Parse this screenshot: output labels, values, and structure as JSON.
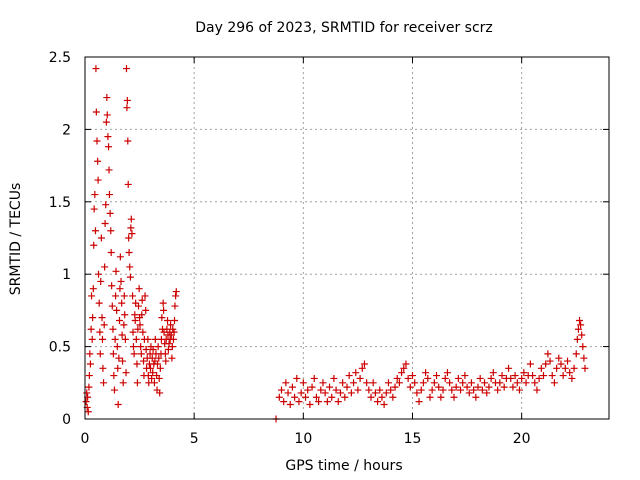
{
  "chart_data": {
    "type": "scatter",
    "title": "Day 296 of 2023, SRMTID for receiver scrz",
    "xlabel": "GPS time / hours",
    "ylabel": "SRMTID / TECUs",
    "xlim": [
      0,
      24
    ],
    "ylim": [
      0,
      2.5
    ],
    "xticks": [
      0,
      5,
      10,
      15,
      20
    ],
    "xtick_labels": [
      "0",
      "5",
      "10",
      "15",
      "20"
    ],
    "yticks": [
      0,
      0.5,
      1,
      1.5,
      2,
      2.5
    ],
    "ytick_labels": [
      "0",
      "0.5",
      "1",
      "1.5",
      "2",
      "2.5"
    ],
    "grid": true,
    "marker": "plus",
    "color": "#cc0000",
    "series": [
      {
        "name": "SRMTID",
        "points": [
          [
            0.05,
            0.12
          ],
          [
            0.08,
            0.18
          ],
          [
            0.1,
            0.08
          ],
          [
            0.12,
            0.15
          ],
          [
            0.15,
            0.05
          ],
          [
            0.18,
            0.22
          ],
          [
            0.2,
            0.3
          ],
          [
            0.22,
            0.45
          ],
          [
            0.25,
            0.38
          ],
          [
            0.28,
            0.62
          ],
          [
            0.3,
            0.85
          ],
          [
            0.33,
            0.55
          ],
          [
            0.35,
            0.7
          ],
          [
            0.38,
            0.9
          ],
          [
            0.4,
            1.2
          ],
          [
            0.42,
            1.45
          ],
          [
            0.45,
            1.55
          ],
          [
            0.48,
            1.3
          ],
          [
            0.5,
            2.42
          ],
          [
            0.52,
            2.12
          ],
          [
            0.55,
            1.92
          ],
          [
            0.58,
            1.78
          ],
          [
            0.6,
            1.65
          ],
          [
            0.62,
            1.0
          ],
          [
            0.65,
            0.8
          ],
          [
            0.68,
            0.6
          ],
          [
            0.7,
            0.45
          ],
          [
            0.72,
            0.95
          ],
          [
            0.75,
            1.25
          ],
          [
            0.78,
            0.7
          ],
          [
            0.8,
            0.55
          ],
          [
            0.82,
            0.35
          ],
          [
            0.85,
            0.25
          ],
          [
            0.88,
            0.65
          ],
          [
            0.9,
            1.05
          ],
          [
            0.92,
            1.35
          ],
          [
            0.95,
            1.48
          ],
          [
            0.98,
            2.05
          ],
          [
            1.0,
            2.22
          ],
          [
            1.02,
            2.1
          ],
          [
            1.05,
            1.95
          ],
          [
            1.08,
            1.88
          ],
          [
            1.1,
            1.72
          ],
          [
            1.12,
            1.55
          ],
          [
            1.15,
            1.42
          ],
          [
            1.18,
            1.3
          ],
          [
            1.2,
            1.15
          ],
          [
            1.22,
            0.92
          ],
          [
            1.25,
            0.78
          ],
          [
            1.28,
            0.62
          ],
          [
            1.3,
            0.45
          ],
          [
            1.32,
            0.3
          ],
          [
            1.35,
            0.2
          ],
          [
            1.38,
            0.55
          ],
          [
            1.4,
            0.85
          ],
          [
            1.42,
            1.02
          ],
          [
            1.45,
            0.75
          ],
          [
            1.48,
            0.5
          ],
          [
            1.5,
            0.35
          ],
          [
            1.52,
            0.1
          ],
          [
            1.55,
            0.42
          ],
          [
            1.58,
            0.68
          ],
          [
            1.6,
            0.9
          ],
          [
            1.62,
            1.12
          ],
          [
            1.65,
            0.95
          ],
          [
            1.68,
            0.8
          ],
          [
            1.7,
            0.58
          ],
          [
            1.72,
            0.4
          ],
          [
            1.75,
            0.25
          ],
          [
            1.78,
            0.65
          ],
          [
            1.8,
            0.85
          ],
          [
            1.82,
            0.72
          ],
          [
            1.85,
            0.55
          ],
          [
            1.88,
            0.32
          ],
          [
            1.9,
            2.42
          ],
          [
            1.92,
            2.15
          ],
          [
            1.94,
            2.2
          ],
          [
            1.96,
            1.92
          ],
          [
            1.98,
            1.62
          ],
          [
            2.0,
            1.25
          ],
          [
            2.02,
            1.15
          ],
          [
            2.05,
            1.05
          ],
          [
            2.08,
            0.98
          ],
          [
            2.1,
            1.32
          ],
          [
            2.12,
            1.38
          ],
          [
            2.15,
            1.28
          ],
          [
            2.18,
            0.85
          ],
          [
            2.2,
            0.6
          ],
          [
            2.22,
            0.5
          ],
          [
            2.25,
            0.45
          ],
          [
            2.28,
            0.72
          ],
          [
            2.3,
            0.68
          ],
          [
            2.32,
            0.8
          ],
          [
            2.35,
            0.55
          ],
          [
            2.38,
            0.38
          ],
          [
            2.4,
            0.25
          ],
          [
            2.42,
            0.62
          ],
          [
            2.45,
            0.78
          ],
          [
            2.48,
            0.9
          ],
          [
            2.5,
            0.7
          ],
          [
            2.52,
            0.65
          ],
          [
            2.55,
            0.5
          ],
          [
            2.58,
            0.45
          ],
          [
            2.6,
            0.72
          ],
          [
            2.62,
            0.82
          ],
          [
            2.65,
            0.6
          ],
          [
            2.68,
            0.4
          ],
          [
            2.7,
            0.3
          ],
          [
            2.72,
            0.55
          ],
          [
            2.75,
            0.85
          ],
          [
            2.78,
            0.75
          ],
          [
            2.8,
            0.48
          ],
          [
            2.82,
            0.35
          ],
          [
            2.85,
            0.42
          ],
          [
            2.88,
            0.55
          ],
          [
            2.9,
            0.3
          ],
          [
            2.92,
            0.25
          ],
          [
            2.95,
            0.38
          ],
          [
            2.98,
            0.45
          ],
          [
            3.0,
            0.35
          ],
          [
            3.02,
            0.5
          ],
          [
            3.05,
            0.28
          ],
          [
            3.08,
            0.42
          ],
          [
            3.1,
            0.32
          ],
          [
            3.12,
            0.48
          ],
          [
            3.15,
            0.38
          ],
          [
            3.18,
            0.25
          ],
          [
            3.2,
            0.4
          ],
          [
            3.22,
            0.55
          ],
          [
            3.25,
            0.45
          ],
          [
            3.28,
            0.3
          ],
          [
            3.3,
            0.2
          ],
          [
            3.32,
            0.38
          ],
          [
            3.35,
            0.5
          ],
          [
            3.38,
            0.42
          ],
          [
            3.4,
            0.28
          ],
          [
            3.42,
            0.18
          ],
          [
            3.45,
            0.35
          ],
          [
            3.48,
            0.45
          ],
          [
            3.5,
            0.55
          ],
          [
            3.52,
            0.7
          ],
          [
            3.55,
            0.62
          ],
          [
            3.58,
            0.8
          ],
          [
            3.6,
            0.75
          ],
          [
            3.62,
            0.6
          ],
          [
            3.65,
            0.52
          ],
          [
            3.68,
            0.45
          ],
          [
            3.7,
            0.4
          ],
          [
            3.72,
            0.55
          ],
          [
            3.75,
            0.62
          ],
          [
            3.78,
            0.68
          ],
          [
            3.8,
            0.58
          ],
          [
            3.82,
            0.48
          ],
          [
            3.85,
            0.52
          ],
          [
            3.88,
            0.6
          ],
          [
            3.9,
            0.55
          ],
          [
            3.92,
            0.65
          ],
          [
            3.95,
            0.58
          ],
          [
            3.98,
            0.42
          ],
          [
            4.0,
            0.5
          ],
          [
            4.02,
            0.62
          ],
          [
            4.05,
            0.55
          ],
          [
            4.08,
            0.6
          ],
          [
            4.1,
            0.68
          ],
          [
            4.12,
            0.78
          ],
          [
            4.15,
            0.85
          ],
          [
            4.18,
            0.88
          ],
          [
            8.75,
            0.0
          ],
          [
            8.9,
            0.15
          ],
          [
            9.0,
            0.2
          ],
          [
            9.1,
            0.12
          ],
          [
            9.2,
            0.25
          ],
          [
            9.3,
            0.18
          ],
          [
            9.4,
            0.1
          ],
          [
            9.5,
            0.22
          ],
          [
            9.6,
            0.15
          ],
          [
            9.7,
            0.28
          ],
          [
            9.8,
            0.12
          ],
          [
            9.9,
            0.18
          ],
          [
            10.0,
            0.25
          ],
          [
            10.1,
            0.15
          ],
          [
            10.2,
            0.2
          ],
          [
            10.3,
            0.1
          ],
          [
            10.4,
            0.22
          ],
          [
            10.5,
            0.28
          ],
          [
            10.6,
            0.15
          ],
          [
            10.7,
            0.12
          ],
          [
            10.8,
            0.2
          ],
          [
            10.9,
            0.25
          ],
          [
            11.0,
            0.18
          ],
          [
            11.1,
            0.12
          ],
          [
            11.2,
            0.22
          ],
          [
            11.3,
            0.15
          ],
          [
            11.4,
            0.28
          ],
          [
            11.5,
            0.2
          ],
          [
            11.6,
            0.12
          ],
          [
            11.7,
            0.18
          ],
          [
            11.8,
            0.25
          ],
          [
            11.9,
            0.15
          ],
          [
            12.0,
            0.22
          ],
          [
            12.1,
            0.3
          ],
          [
            12.2,
            0.18
          ],
          [
            12.3,
            0.25
          ],
          [
            12.4,
            0.32
          ],
          [
            12.5,
            0.2
          ],
          [
            12.6,
            0.28
          ],
          [
            12.7,
            0.35
          ],
          [
            12.8,
            0.38
          ],
          [
            12.9,
            0.25
          ],
          [
            13.0,
            0.2
          ],
          [
            13.1,
            0.15
          ],
          [
            13.2,
            0.25
          ],
          [
            13.3,
            0.18
          ],
          [
            13.4,
            0.12
          ],
          [
            13.5,
            0.2
          ],
          [
            13.6,
            0.15
          ],
          [
            13.7,
            0.1
          ],
          [
            13.8,
            0.18
          ],
          [
            13.9,
            0.25
          ],
          [
            14.0,
            0.2
          ],
          [
            14.1,
            0.15
          ],
          [
            14.2,
            0.22
          ],
          [
            14.3,
            0.28
          ],
          [
            14.4,
            0.25
          ],
          [
            14.5,
            0.32
          ],
          [
            14.6,
            0.35
          ],
          [
            14.7,
            0.38
          ],
          [
            14.8,
            0.28
          ],
          [
            14.9,
            0.22
          ],
          [
            15.0,
            0.3
          ],
          [
            15.1,
            0.25
          ],
          [
            15.2,
            0.18
          ],
          [
            15.3,
            0.12
          ],
          [
            15.4,
            0.2
          ],
          [
            15.5,
            0.25
          ],
          [
            15.6,
            0.32
          ],
          [
            15.7,
            0.28
          ],
          [
            15.8,
            0.15
          ],
          [
            15.9,
            0.2
          ],
          [
            16.0,
            0.25
          ],
          [
            16.1,
            0.3
          ],
          [
            16.2,
            0.22
          ],
          [
            16.3,
            0.15
          ],
          [
            16.4,
            0.2
          ],
          [
            16.5,
            0.28
          ],
          [
            16.6,
            0.32
          ],
          [
            16.7,
            0.25
          ],
          [
            16.8,
            0.2
          ],
          [
            16.9,
            0.15
          ],
          [
            17.0,
            0.22
          ],
          [
            17.1,
            0.28
          ],
          [
            17.2,
            0.2
          ],
          [
            17.3,
            0.25
          ],
          [
            17.4,
            0.3
          ],
          [
            17.5,
            0.22
          ],
          [
            17.6,
            0.18
          ],
          [
            17.7,
            0.25
          ],
          [
            17.8,
            0.2
          ],
          [
            17.9,
            0.15
          ],
          [
            18.0,
            0.22
          ],
          [
            18.1,
            0.28
          ],
          [
            18.2,
            0.2
          ],
          [
            18.3,
            0.25
          ],
          [
            18.4,
            0.18
          ],
          [
            18.5,
            0.22
          ],
          [
            18.6,
            0.28
          ],
          [
            18.7,
            0.32
          ],
          [
            18.8,
            0.25
          ],
          [
            18.9,
            0.2
          ],
          [
            19.0,
            0.25
          ],
          [
            19.1,
            0.3
          ],
          [
            19.2,
            0.22
          ],
          [
            19.3,
            0.28
          ],
          [
            19.4,
            0.35
          ],
          [
            19.5,
            0.28
          ],
          [
            19.6,
            0.22
          ],
          [
            19.7,
            0.3
          ],
          [
            19.8,
            0.25
          ],
          [
            19.9,
            0.2
          ],
          [
            20.0,
            0.28
          ],
          [
            20.1,
            0.32
          ],
          [
            20.2,
            0.25
          ],
          [
            20.3,
            0.3
          ],
          [
            20.4,
            0.38
          ],
          [
            20.5,
            0.3
          ],
          [
            20.6,
            0.25
          ],
          [
            20.7,
            0.2
          ],
          [
            20.8,
            0.28
          ],
          [
            20.9,
            0.35
          ],
          [
            21.0,
            0.3
          ],
          [
            21.1,
            0.38
          ],
          [
            21.2,
            0.45
          ],
          [
            21.3,
            0.4
          ],
          [
            21.4,
            0.3
          ],
          [
            21.5,
            0.25
          ],
          [
            21.6,
            0.35
          ],
          [
            21.7,
            0.42
          ],
          [
            21.8,
            0.38
          ],
          [
            21.9,
            0.3
          ],
          [
            22.0,
            0.35
          ],
          [
            22.1,
            0.4
          ],
          [
            22.2,
            0.32
          ],
          [
            22.3,
            0.28
          ],
          [
            22.4,
            0.35
          ],
          [
            22.5,
            0.45
          ],
          [
            22.55,
            0.55
          ],
          [
            22.6,
            0.62
          ],
          [
            22.65,
            0.68
          ],
          [
            22.7,
            0.65
          ],
          [
            22.75,
            0.58
          ],
          [
            22.8,
            0.5
          ],
          [
            22.85,
            0.42
          ],
          [
            22.9,
            0.35
          ]
        ]
      }
    ]
  }
}
